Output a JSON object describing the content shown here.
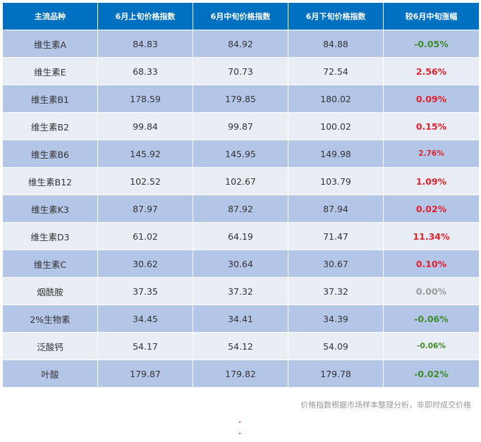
{
  "table": {
    "headers": [
      "主流品种",
      "6月上旬价格指数",
      "6月中旬价格指数",
      "6月下旬价格指数",
      "较6月中旬涨幅"
    ],
    "rows": [
      {
        "name": "维生素A",
        "early": "84.83",
        "mid": "84.92",
        "late": "84.88",
        "change": "-0.05%",
        "dir": "down"
      },
      {
        "name": "维生素E",
        "early": "68.33",
        "mid": "70.73",
        "late": "72.54",
        "change": "2.56%",
        "dir": "up"
      },
      {
        "name": "维生素B1",
        "early": "178.59",
        "mid": "179.85",
        "late": "180.02",
        "change": "0.09%",
        "dir": "up"
      },
      {
        "name": "维生素B2",
        "early": "99.84",
        "mid": "99.87",
        "late": "100.02",
        "change": "0.15%",
        "dir": "up"
      },
      {
        "name": "维生素B6",
        "early": "145.92",
        "mid": "145.95",
        "late": "149.98",
        "change": "2.76%",
        "dir": "up"
      },
      {
        "name": "维生素B12",
        "early": "102.52",
        "mid": "102.67",
        "late": "103.79",
        "change": "1.09%",
        "dir": "up"
      },
      {
        "name": "维生素K3",
        "early": "87.97",
        "mid": "87.92",
        "late": "87.94",
        "change": "0.02%",
        "dir": "up"
      },
      {
        "name": "维生素D3",
        "early": "61.02",
        "mid": "64.19",
        "late": "71.47",
        "change": "11.34%",
        "dir": "up"
      },
      {
        "name": "维生素C",
        "early": "30.62",
        "mid": "30.64",
        "late": "30.67",
        "change": "0.10%",
        "dir": "up"
      },
      {
        "name": "烟酰胺",
        "early": "37.35",
        "mid": "37.32",
        "late": "37.32",
        "change": "0.00%",
        "dir": "flat"
      },
      {
        "name": "2%生物素",
        "early": "34.45",
        "mid": "34.41",
        "late": "34.39",
        "change": "-0.06%",
        "dir": "down"
      },
      {
        "name": "泛酸钙",
        "early": "54.17",
        "mid": "54.12",
        "late": "54.09",
        "change": "-0.06%",
        "dir": "down"
      },
      {
        "name": "叶酸",
        "early": "179.87",
        "mid": "179.82",
        "late": "179.78",
        "change": "-0.02%",
        "dir": "down"
      }
    ]
  },
  "colors": {
    "up": "#e0202a",
    "down": "#3f8a2a",
    "flat": "#999999",
    "header_bg": "#0070c0"
  },
  "footnote": "价格指数根据市场样本整理分析，非即时成交价格"
}
